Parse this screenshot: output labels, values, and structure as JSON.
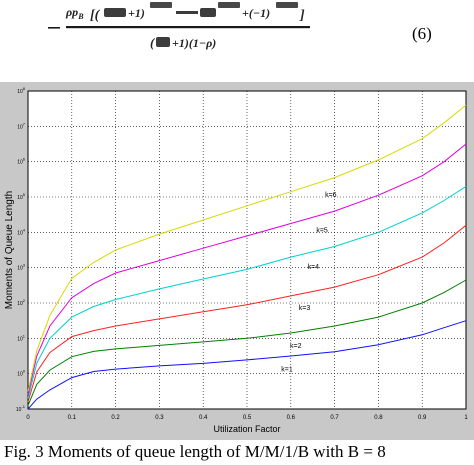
{
  "equation": {
    "number": "(6)"
  },
  "caption": "Fig. 3 Moments of queue length of M/M/1/B with B = 8",
  "chart_data": {
    "type": "line",
    "xlabel": "Utilization Factor",
    "ylabel": "Moments of Queue Length",
    "xlim": [
      0,
      1
    ],
    "x_ticks": [
      "0",
      "0.1",
      "0.2",
      "0.3",
      "0.4",
      "0.5",
      "0.6",
      "0.7",
      "0.8",
      "0.9",
      "1"
    ],
    "y_scale": "log",
    "y_tick_exponents": [
      -1,
      0,
      1,
      2,
      3,
      4,
      5,
      6,
      7,
      8
    ],
    "ylim_exponent": [
      -1,
      8
    ],
    "grid": true,
    "x": [
      0,
      0.02,
      0.05,
      0.1,
      0.15,
      0.2,
      0.3,
      0.4,
      0.5,
      0.6,
      0.7,
      0.8,
      0.9,
      0.95,
      1.0
    ],
    "series": [
      {
        "name": "k=1",
        "color": "#1010ff",
        "log10_values": [
          -1.0,
          -0.72,
          -0.46,
          -0.11,
          0.06,
          0.13,
          0.22,
          0.29,
          0.39,
          0.5,
          0.62,
          0.82,
          1.1,
          1.3,
          1.5
        ]
      },
      {
        "name": "k=2",
        "color": "#008000",
        "log10_values": [
          -0.9,
          -0.3,
          0.1,
          0.48,
          0.63,
          0.7,
          0.8,
          0.9,
          1.0,
          1.15,
          1.35,
          1.6,
          2.0,
          2.3,
          2.65
        ]
      },
      {
        "name": "k=3",
        "color": "#ff2020",
        "log10_values": [
          -0.8,
          0.05,
          0.6,
          1.05,
          1.22,
          1.35,
          1.55,
          1.75,
          1.95,
          2.2,
          2.45,
          2.8,
          3.3,
          3.7,
          4.2
        ]
      },
      {
        "name": "k=4",
        "color": "#00d0d0",
        "log10_values": [
          -0.7,
          0.3,
          1.0,
          1.6,
          1.9,
          2.1,
          2.4,
          2.68,
          2.95,
          3.3,
          3.6,
          4.0,
          4.55,
          4.9,
          5.3
        ]
      },
      {
        "name": "k=5",
        "color": "#e000e0",
        "log10_values": [
          -0.6,
          0.5,
          1.35,
          2.15,
          2.55,
          2.85,
          3.2,
          3.55,
          3.9,
          4.25,
          4.6,
          5.05,
          5.6,
          6.0,
          6.5
        ]
      },
      {
        "name": "k=6",
        "color": "#d8d800",
        "log10_values": [
          -0.5,
          0.65,
          1.65,
          2.7,
          3.15,
          3.5,
          3.95,
          4.35,
          4.75,
          5.15,
          5.55,
          6.05,
          6.65,
          7.1,
          7.6
        ]
      }
    ]
  }
}
